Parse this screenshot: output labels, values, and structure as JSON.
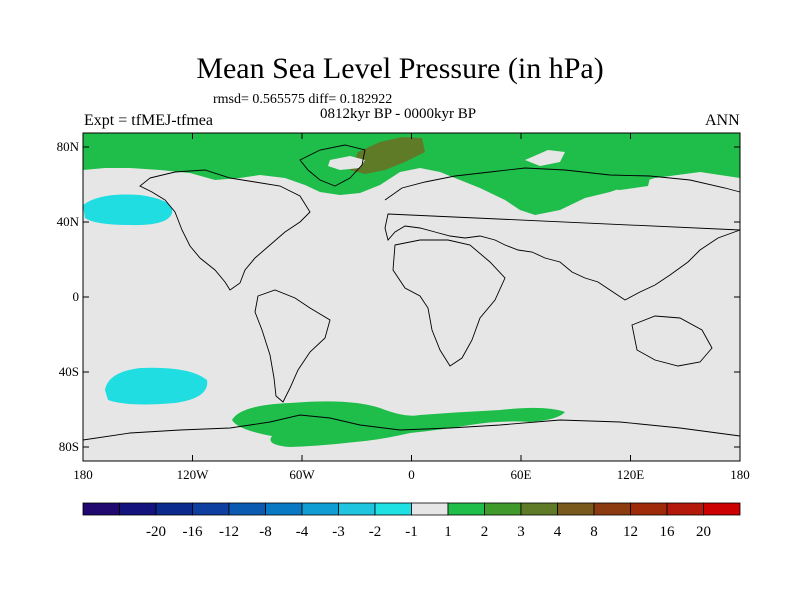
{
  "title": "Mean Sea Level Pressure (in hPa)",
  "stats": "rmsd= 0.565575 diff= 0.182922",
  "period": "0812kyr BP - 0000kyr BP",
  "expt": "Expt = tfMEJ-tfmea",
  "season": "ANN",
  "map": {
    "lat_ticks": [
      "80N",
      "40N",
      "0",
      "40S",
      "80S"
    ],
    "lon_ticks": [
      "180",
      "120W",
      "60W",
      "0",
      "60E",
      "120E",
      "180"
    ],
    "background_color": "#e6e6e6",
    "regions": [
      {
        "name": "arctic-band",
        "level": "1 to 2",
        "color": "#1fbd4a"
      },
      {
        "name": "greenland-high",
        "level": "3 to 4",
        "color": "#607b28"
      },
      {
        "name": "north-pacific-low",
        "level": "-2 to -1",
        "color": "#1fdde0"
      },
      {
        "name": "south-pacific-low",
        "level": "-2 to -1",
        "color": "#1fdde0"
      },
      {
        "name": "antarctic-band",
        "level": "1 to 2",
        "color": "#1fbd4a"
      }
    ]
  },
  "colorbar": {
    "colors": [
      "#200870",
      "#14127c",
      "#0c2a8e",
      "#0d3ea0",
      "#0a5ab2",
      "#0a79c4",
      "#0f9dd3",
      "#1fc4df",
      "#1fe1e4",
      "#e6e6e6",
      "#1fbd4a",
      "#3f9a2b",
      "#607b28",
      "#7a5a1c",
      "#8c3b10",
      "#9e2a0a",
      "#b3180a",
      "#cc0000"
    ],
    "labels": [
      "-20",
      "-16",
      "-12",
      "-8",
      "-4",
      "-3",
      "-2",
      "-1",
      "1",
      "2",
      "3",
      "4",
      "8",
      "12",
      "16",
      "20"
    ]
  }
}
